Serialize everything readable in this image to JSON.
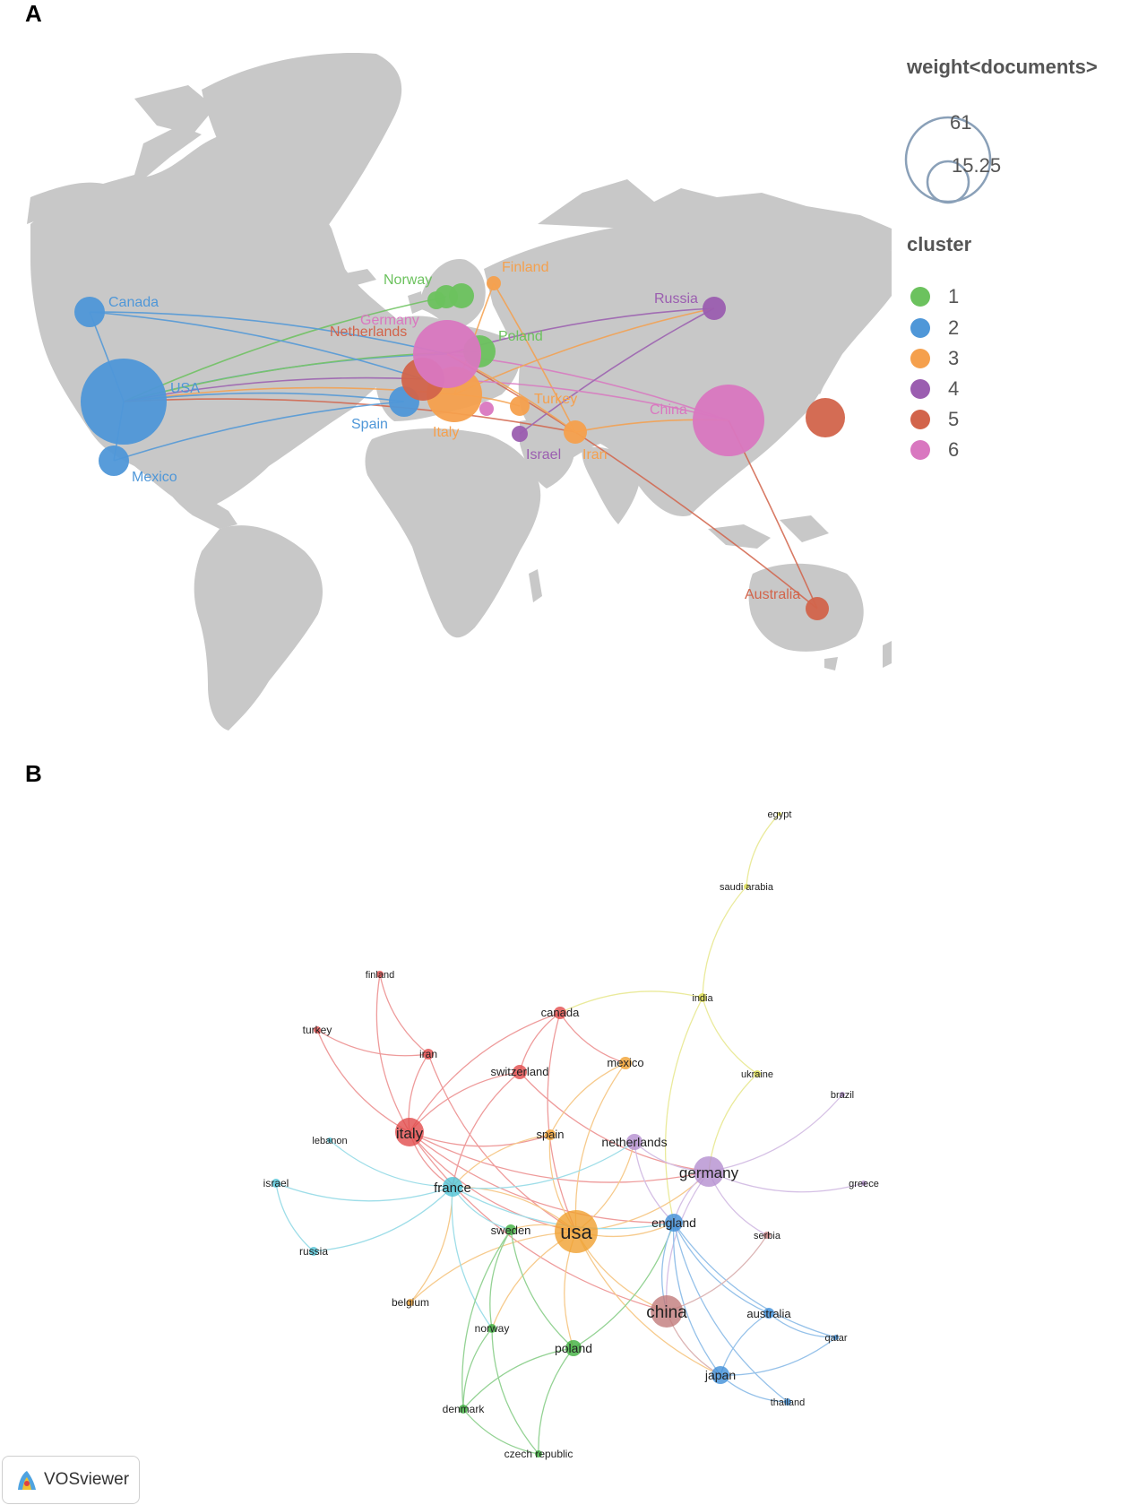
{
  "panel_labels": {
    "a": "A",
    "b": "B"
  },
  "legend": {
    "weight_title": "weight<documents>",
    "size_max": "61",
    "size_mid": "15.25",
    "cluster_title": "cluster",
    "clusters": [
      {
        "label": "1",
        "color": "#6cc25e"
      },
      {
        "label": "2",
        "color": "#4f97d8"
      },
      {
        "label": "3",
        "color": "#f5a04d"
      },
      {
        "label": "4",
        "color": "#9b5eb0"
      },
      {
        "label": "5",
        "color": "#d2644b"
      },
      {
        "label": "6",
        "color": "#d977c0"
      }
    ]
  },
  "map_nodes": [
    {
      "label": "USA",
      "cluster": 2
    },
    {
      "label": "Canada",
      "cluster": 2
    },
    {
      "label": "Mexico",
      "cluster": 2
    },
    {
      "label": "Spain",
      "cluster": 2
    },
    {
      "label": "Norway",
      "cluster": 1
    },
    {
      "label": "Poland",
      "cluster": 1
    },
    {
      "label": "Finland",
      "cluster": 3
    },
    {
      "label": "Italy",
      "cluster": 3
    },
    {
      "label": "Turkey",
      "cluster": 3
    },
    {
      "label": "Iran",
      "cluster": 3
    },
    {
      "label": "Russia",
      "cluster": 4
    },
    {
      "label": "Israel",
      "cluster": 4
    },
    {
      "label": "Netherlands",
      "cluster": 5
    },
    {
      "label": "Australia",
      "cluster": 5
    },
    {
      "label": "Germany",
      "cluster": 6
    },
    {
      "label": "China",
      "cluster": 6
    }
  ],
  "network_nodes": [
    {
      "label": "egypt",
      "color": "#d9d94a"
    },
    {
      "label": "saudi arabia",
      "color": "#d9d94a"
    },
    {
      "label": "india",
      "color": "#d9d94a"
    },
    {
      "label": "ukraine",
      "color": "#d9d94a"
    },
    {
      "label": "finland",
      "color": "#e14b4b"
    },
    {
      "label": "turkey",
      "color": "#e14b4b"
    },
    {
      "label": "iran",
      "color": "#e14b4b"
    },
    {
      "label": "canada",
      "color": "#e14b4b"
    },
    {
      "label": "switzerland",
      "color": "#e14b4b"
    },
    {
      "label": "italy",
      "color": "#e14b4b"
    },
    {
      "label": "mexico",
      "color": "#f0a030"
    },
    {
      "label": "spain",
      "color": "#f0a030"
    },
    {
      "label": "usa",
      "color": "#f0a030"
    },
    {
      "label": "belgium",
      "color": "#f0a030"
    },
    {
      "label": "netherlands",
      "color": "#b48ed0"
    },
    {
      "label": "germany",
      "color": "#b48ed0"
    },
    {
      "label": "greece",
      "color": "#b48ed0"
    },
    {
      "label": "brazil",
      "color": "#b48ed0"
    },
    {
      "label": "lebanon",
      "color": "#4fc3d6"
    },
    {
      "label": "israel",
      "color": "#4fc3d6"
    },
    {
      "label": "france",
      "color": "#4fc3d6"
    },
    {
      "label": "russia",
      "color": "#4fc3d6"
    },
    {
      "label": "sweden",
      "color": "#3daf3d"
    },
    {
      "label": "norway",
      "color": "#3daf3d"
    },
    {
      "label": "poland",
      "color": "#3daf3d"
    },
    {
      "label": "denmark",
      "color": "#3daf3d"
    },
    {
      "label": "czech republic",
      "color": "#3daf3d"
    },
    {
      "label": "england",
      "color": "#3f8fd8"
    },
    {
      "label": "australia",
      "color": "#3f8fd8"
    },
    {
      "label": "qatar",
      "color": "#3f8fd8"
    },
    {
      "label": "japan",
      "color": "#3f8fd8"
    },
    {
      "label": "thailand",
      "color": "#3f8fd8"
    },
    {
      "label": "serbia",
      "color": "#c07a7a"
    },
    {
      "label": "china",
      "color": "#c07a7a"
    }
  ],
  "vos_badge": {
    "label": "VOSviewer"
  }
}
